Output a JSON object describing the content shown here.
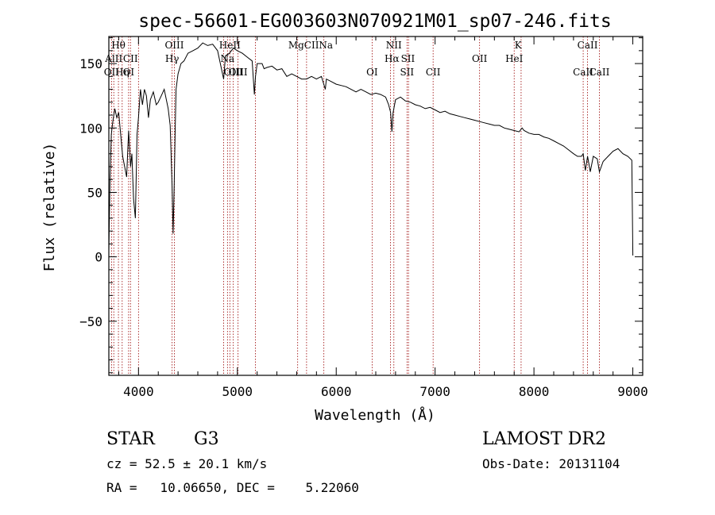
{
  "chart_data": {
    "type": "line",
    "title": "spec-56601-EG003603N070921M01_sp07-246.fits",
    "xlabel": "Wavelength (Å)",
    "ylabel": "Flux (relative)",
    "xlim": [
      3700,
      9100
    ],
    "ylim": [
      -92,
      171
    ],
    "x_ticks": [
      4000,
      5000,
      6000,
      7000,
      8000,
      9000
    ],
    "y_ticks": [
      -50,
      0,
      50,
      100,
      150
    ],
    "grid": false,
    "series": [
      {
        "x": [
          3700,
          3712,
          3725,
          3740,
          3760,
          3780,
          3800,
          3820,
          3840,
          3860,
          3880,
          3900,
          3920,
          3933,
          3950,
          3968,
          3985,
          4000,
          4020,
          4040,
          4060,
          4080,
          4101,
          4120,
          4150,
          4180,
          4200,
          4230,
          4260,
          4300,
          4320,
          4340,
          4350,
          4360,
          4370,
          4380,
          4400,
          4430,
          4460,
          4500,
          4550,
          4600,
          4650,
          4700,
          4750,
          4800,
          4861,
          4880,
          4920,
          4960,
          5000,
          5050,
          5100,
          5150,
          5172,
          5183,
          5200,
          5250,
          5270,
          5300,
          5350,
          5400,
          5450,
          5500,
          5550,
          5600,
          5650,
          5700,
          5750,
          5800,
          5850,
          5890,
          5900,
          5950,
          6000,
          6050,
          6100,
          6150,
          6200,
          6250,
          6300,
          6350,
          6400,
          6450,
          6500,
          6530,
          6550,
          6563,
          6575,
          6600,
          6650,
          6700,
          6750,
          6800,
          6850,
          6900,
          6950,
          7000,
          7050,
          7100,
          7150,
          7200,
          7250,
          7300,
          7350,
          7400,
          7450,
          7500,
          7550,
          7600,
          7650,
          7700,
          7750,
          7800,
          7850,
          7880,
          7900,
          7950,
          8000,
          8050,
          8100,
          8150,
          8200,
          8250,
          8300,
          8350,
          8400,
          8440,
          8480,
          8498,
          8520,
          8542,
          8570,
          8600,
          8640,
          8662,
          8700,
          8750,
          8800,
          8850,
          8900,
          8950,
          8990,
          9000
        ],
        "y": [
          5,
          60,
          95,
          105,
          115,
          108,
          112,
          95,
          78,
          70,
          62,
          98,
          70,
          80,
          45,
          30,
          95,
          108,
          130,
          118,
          130,
          125,
          108,
          122,
          128,
          118,
          120,
          125,
          130,
          115,
          102,
          55,
          18,
          50,
          95,
          130,
          142,
          150,
          152,
          158,
          160,
          162,
          166,
          164,
          165,
          160,
          138,
          156,
          158,
          162,
          160,
          158,
          155,
          152,
          126,
          140,
          150,
          150,
          146,
          147,
          148,
          145,
          146,
          140,
          142,
          140,
          138,
          138,
          140,
          138,
          140,
          130,
          138,
          136,
          134,
          133,
          132,
          130,
          128,
          130,
          128,
          126,
          127,
          126,
          124,
          118,
          112,
          97,
          112,
          122,
          124,
          121,
          120,
          118,
          117,
          115,
          116,
          114,
          112,
          113,
          111,
          110,
          109,
          108,
          107,
          106,
          105,
          104,
          103,
          102,
          102,
          100,
          99,
          98,
          97,
          100,
          98,
          96,
          95,
          95,
          93,
          92,
          90,
          88,
          86,
          83,
          80,
          78,
          78,
          80,
          67,
          78,
          66,
          78,
          76,
          66,
          74,
          78,
          82,
          84,
          80,
          78,
          75,
          1
        ]
      }
    ],
    "line_names": [
      {
        "name": "Hθ",
        "wl": 3797,
        "row": 1
      },
      {
        "name": "AlII",
        "wl": 3750,
        "row": 2
      },
      {
        "name": "CII",
        "wl": 3919,
        "row": 2
      },
      {
        "name": "OII",
        "wl": 3727,
        "row": 3
      },
      {
        "name": "Hη",
        "wl": 3835,
        "row": 3
      },
      {
        "name": "OI",
        "wl": 3900,
        "row": 3
      },
      {
        "name": "OIII",
        "wl": 4363,
        "row": 1
      },
      {
        "name": "Hγ",
        "wl": 4340,
        "row": 2
      },
      {
        "name": "HeII",
        "wl": 4924,
        "row": 1
      },
      {
        "name": "Na",
        "wl": 4900,
        "row": 2
      },
      {
        "name": "OIII",
        "wl": 4959,
        "row": 3
      },
      {
        "name": "OIII",
        "wl": 5007,
        "row": 3
      },
      {
        "name": "MgCII",
        "wl": 5670,
        "row": 1
      },
      {
        "name": "Na",
        "wl": 5895,
        "row": 1
      },
      {
        "name": "NII",
        "wl": 6583,
        "row": 1
      },
      {
        "name": "Hα",
        "wl": 6563,
        "row": 2
      },
      {
        "name": "SII",
        "wl": 6725,
        "row": 2
      },
      {
        "name": "OI",
        "wl": 6363,
        "row": 3
      },
      {
        "name": "SII",
        "wl": 6716,
        "row": 3
      },
      {
        "name": "CII",
        "wl": 6980,
        "row": 3
      },
      {
        "name": "OII",
        "wl": 7450,
        "row": 2
      },
      {
        "name": "K",
        "wl": 7840,
        "row": 1
      },
      {
        "name": "HeI",
        "wl": 7800,
        "row": 2
      },
      {
        "name": "CaII",
        "wl": 8542,
        "row": 1
      },
      {
        "name": "CaII",
        "wl": 8498,
        "row": 3
      },
      {
        "name": "CaII",
        "wl": 8662,
        "row": 3
      }
    ],
    "line_marks_wl": [
      3727,
      3750,
      3797,
      3835,
      3900,
      3919,
      4000,
      4340,
      4363,
      4861,
      4900,
      4924,
      4959,
      5007,
      5183,
      5610,
      5700,
      5875,
      6363,
      6548,
      6583,
      6716,
      6731,
      6980,
      7450,
      7800,
      7870,
      8498,
      8542,
      8662
    ]
  },
  "footer": {
    "object_type": "STAR",
    "subclass": "G3",
    "survey": "LAMOST DR2",
    "cz": "cz = 52.5 ± 20.1 km/s",
    "obs_date": "Obs-Date: 20131104",
    "coords": "RA =   10.06650, DEC =    5.22060"
  },
  "colors": {
    "spectrum": "#000000",
    "line_marks": "#990000",
    "axes": "#000000"
  }
}
